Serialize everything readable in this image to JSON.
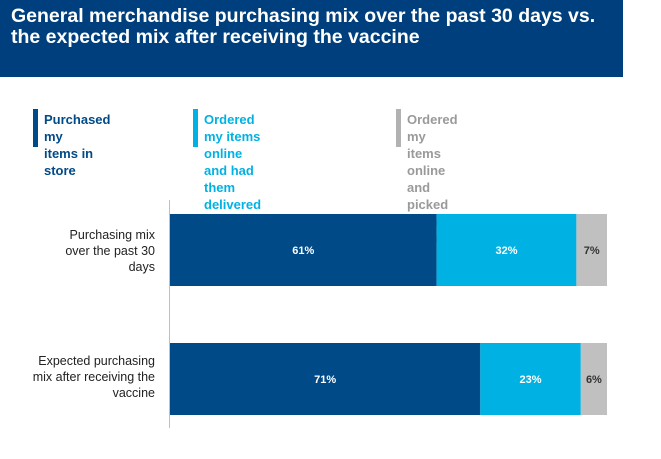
{
  "title": "General merchandise purchasing mix over the past 30 days vs. the expected mix after receiving the vaccine",
  "legend": [
    {
      "label": "Purchased my\nitems in store",
      "color": "#004a87"
    },
    {
      "label": "Ordered my items online\nand had them delivered",
      "color": "#00b2e3"
    },
    {
      "label": "Ordered my items online and\npicked them up in-store",
      "color": "#b2b2b2"
    }
  ],
  "chart_data": {
    "type": "bar",
    "orientation": "horizontal",
    "stacked": true,
    "categories": [
      "Purchasing mix\nover the past 30\ndays",
      "Expected purchasing\nmix after receiving the\nvaccine"
    ],
    "series": [
      {
        "name": "Purchased my items in store",
        "values": [
          61,
          71
        ],
        "labels": [
          "61%",
          "71%"
        ],
        "color": "#004a87",
        "label_color": "#ffffff"
      },
      {
        "name": "Ordered my items online and had them delivered",
        "values": [
          32,
          23
        ],
        "labels": [
          "32%",
          "23%"
        ],
        "color": "#00b2e3",
        "label_color": "#ffffff"
      },
      {
        "name": "Ordered my items online and picked them up in-store",
        "values": [
          7,
          6
        ],
        "labels": [
          "7%",
          "6%"
        ],
        "color": "#c0c0c0",
        "label_color": "#333333"
      }
    ],
    "xlim": [
      0,
      100
    ],
    "legend_position": "top",
    "grid": false
  }
}
